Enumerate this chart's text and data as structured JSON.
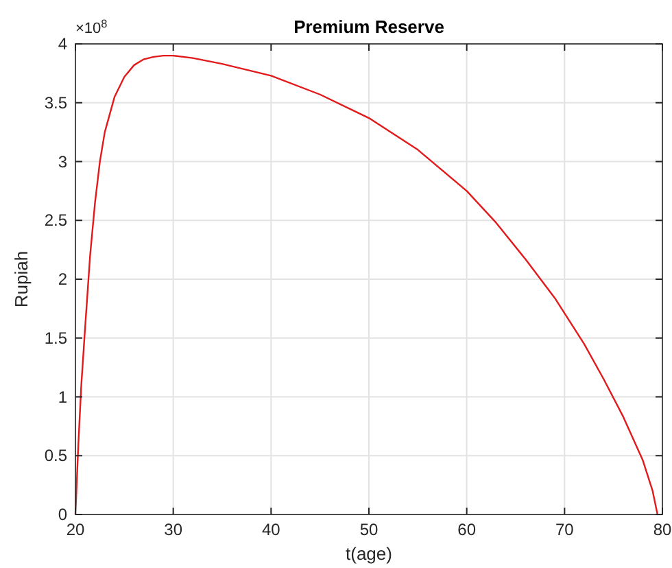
{
  "chart_data": {
    "type": "line",
    "title": "Premium Reserve",
    "xlabel": "t(age)",
    "ylabel": "Rupiah",
    "annotations": [
      "×10$^{8}$"
    ],
    "x": [
      20,
      20.3,
      20.6,
      21,
      21.5,
      22,
      22.5,
      23,
      24,
      25,
      26,
      27,
      28,
      29,
      30,
      32,
      35,
      40,
      45,
      50,
      55,
      60,
      63,
      66,
      69,
      72,
      74,
      76,
      78,
      79,
      79.5
    ],
    "series": [
      {
        "color": "#e31a1c",
        "values": [
          0,
          0.6,
          1.1,
          1.6,
          2.2,
          2.65,
          3.0,
          3.25,
          3.55,
          3.72,
          3.82,
          3.87,
          3.89,
          3.9,
          3.9,
          3.88,
          3.83,
          3.73,
          3.57,
          3.37,
          3.1,
          2.75,
          2.48,
          2.17,
          1.84,
          1.45,
          1.15,
          0.83,
          0.46,
          0.2,
          0
        ]
      }
    ],
    "xlim": [
      20,
      80
    ],
    "xticks": [
      20,
      30,
      40,
      50,
      60,
      70,
      80
    ],
    "ylim": [
      0,
      4
    ],
    "yticks": [
      0,
      0.5,
      1,
      1.5,
      2,
      2.5,
      3,
      3.5,
      4
    ],
    "grid": true
  }
}
